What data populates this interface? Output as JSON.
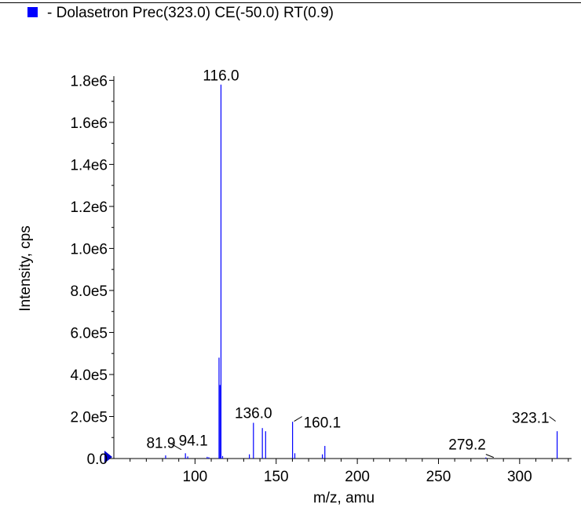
{
  "legend": {
    "label": "- Dolasetron Prec(323.0) CE(-50.0) RT(0.9)",
    "swatch_color": "#0000ff"
  },
  "chart_data": {
    "type": "bar",
    "title": "",
    "xlabel": "m/z, amu",
    "ylabel": "Intensity, cps",
    "xlim": [
      50,
      332
    ],
    "ylim": [
      0,
      1820000
    ],
    "x_ticks": [
      100,
      150,
      200,
      250,
      300
    ],
    "y_ticks": [
      "0.0",
      "2.0e5",
      "4.0e5",
      "6.0e5",
      "8.0e5",
      "1.0e6",
      "1.2e6",
      "1.4e6",
      "1.6e6",
      "1.8e6"
    ],
    "y_tick_values": [
      0,
      200000,
      400000,
      600000,
      800000,
      1000000,
      1200000,
      1400000,
      1600000,
      1800000
    ],
    "grid": false,
    "legend_position": "top-left",
    "series": [
      {
        "name": "Dolasetron",
        "color": "#0000ff",
        "x": [
          81.9,
          94.1,
          95.5,
          107.5,
          108.5,
          114.8,
          115.4,
          116.0,
          117.0,
          133.5,
          136.0,
          141.5,
          143.5,
          160.1,
          161.5,
          178.5,
          180.0,
          279.2,
          323.1
        ],
        "values": [
          15000,
          25000,
          10000,
          8000,
          6000,
          480000,
          350000,
          1780000,
          12000,
          20000,
          170000,
          145000,
          130000,
          175000,
          25000,
          20000,
          60000,
          5000,
          130000
        ]
      }
    ],
    "peak_labels": [
      {
        "x": 116.0,
        "text": "116.0"
      },
      {
        "x": 136.0,
        "text": "136.0"
      },
      {
        "x": 160.1,
        "text": "160.1"
      },
      {
        "x": 323.1,
        "text": "323.1"
      },
      {
        "x": 279.2,
        "text": "279.2"
      },
      {
        "x": 94.1,
        "text": "94.1"
      },
      {
        "x": 81.9,
        "text": "81.9"
      }
    ]
  }
}
